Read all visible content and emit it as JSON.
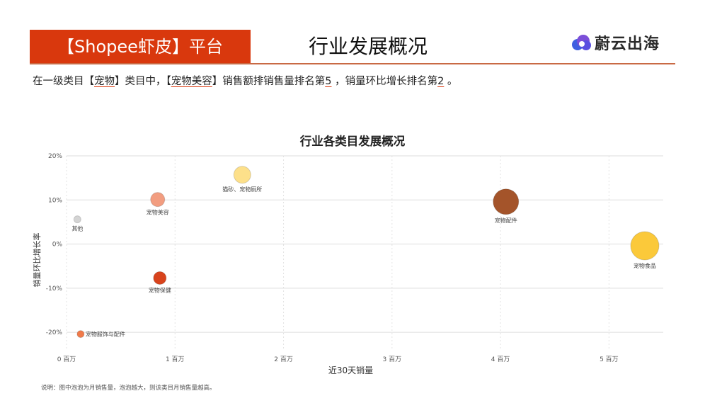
{
  "header": {
    "platform_tag": "【Shopee虾皮】平台",
    "title": "行业发展概况",
    "brand_name": "蔚云出海",
    "brand_colors": [
      "#7b4fd8",
      "#3f5fe0"
    ]
  },
  "summary": {
    "p1": "在一级类目【",
    "cat1": "宠物",
    "p2": "】类目中，【",
    "cat2": "宠物美容",
    "p3": "】销售额排销售量排名第",
    "rank1": "5",
    "p4": " ，销量环比增长排名第",
    "rank2": "2",
    "p5": " 。"
  },
  "chart_data": {
    "type": "scatter",
    "title": "行业各类目发展概况",
    "xlabel": "近30天销量",
    "ylabel": "销量环比增长率",
    "xlim": [
      0,
      5.5
    ],
    "ylim": [
      -0.24,
      0.2
    ],
    "x_ticks": [
      0,
      1,
      2,
      3,
      4,
      5
    ],
    "x_tick_labels": [
      "0 百万",
      "1 百万",
      "2 百万",
      "3 百万",
      "4 百万",
      "5 百万"
    ],
    "y_ticks": [
      0.2,
      0.1,
      0,
      -0.1,
      -0.2
    ],
    "y_tick_labels": [
      "20%",
      "10%",
      "0%",
      "-10%",
      "-20%"
    ],
    "grid": true,
    "points": [
      {
        "name": "猫砂、宠物厕所",
        "x": 1.62,
        "y": 0.157,
        "size": 12,
        "color": "#fde08a",
        "label_pos": "below"
      },
      {
        "name": "宠物美容",
        "x": 0.84,
        "y": 0.101,
        "size": 10,
        "color": "#f29d80",
        "label_pos": "below"
      },
      {
        "name": "其他",
        "x": 0.1,
        "y": 0.056,
        "size": 5,
        "color": "#d4d4d4",
        "label_pos": "below"
      },
      {
        "name": "宠物配件",
        "x": 4.05,
        "y": 0.096,
        "size": 18,
        "color": "#a4542a",
        "label_pos": "below"
      },
      {
        "name": "宠物食品",
        "x": 5.33,
        "y": -0.004,
        "size": 20,
        "color": "#fbc93a",
        "label_pos": "below"
      },
      {
        "name": "宠物保健",
        "x": 0.86,
        "y": -0.077,
        "size": 9,
        "color": "#d8431c",
        "label_pos": "below"
      },
      {
        "name": "宠物服饰与配件",
        "x": 0.13,
        "y": -0.204,
        "size": 5,
        "color": "#f07a4a",
        "label_pos": "right"
      }
    ]
  },
  "note": "说明：图中泡泡为月销售量，泡泡越大，则该类目月销售量越高。"
}
